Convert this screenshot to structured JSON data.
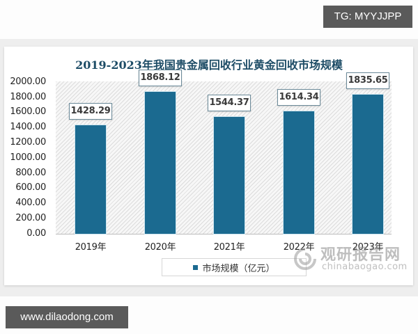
{
  "badges": {
    "top_right": "TG: MYYJJPP",
    "bottom_left": "www.dilaodong.com"
  },
  "watermark": {
    "cn": "观研报告网",
    "en": "chinabaogao.com"
  },
  "colors": {
    "bar": "#1b6a90",
    "title": "#1d4c66",
    "badge_bg": "#5a5a5a"
  },
  "y_ticks": [
    "2000.00",
    "1800.00",
    "1600.00",
    "1400.00",
    "1200.00",
    "1000.00",
    "800.00",
    "600.00",
    "400.00",
    "200.00",
    "0.00"
  ],
  "chart_data": {
    "type": "bar",
    "title": "2019-2023年我国贵金属回收行业黄金回收市场规模",
    "categories": [
      "2019年",
      "2020年",
      "2021年",
      "2022年",
      "2023年"
    ],
    "series": [
      {
        "name": "市场规模（亿元）",
        "values": [
          1428.29,
          1868.12,
          1544.37,
          1614.34,
          1835.65
        ]
      }
    ],
    "value_labels": [
      "1428.29",
      "1868.12",
      "1544.37",
      "1614.34",
      "1835.65"
    ],
    "xlabel": "",
    "ylabel": "",
    "ylim": [
      0,
      2000
    ],
    "y_tick_step": 200,
    "grid": false,
    "legend_position": "bottom",
    "legend": [
      "市场规模（亿元）"
    ]
  }
}
